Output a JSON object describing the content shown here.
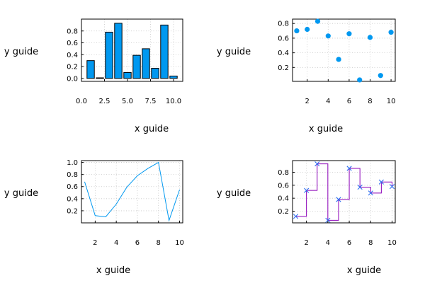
{
  "chart_data": [
    {
      "type": "bar",
      "xlabel": "x guide",
      "ylabel": "y guide",
      "x": [
        1,
        2,
        3,
        4,
        5,
        6,
        7,
        8,
        9,
        10
      ],
      "values": [
        0.3,
        0.01,
        0.78,
        0.93,
        0.1,
        0.39,
        0.5,
        0.17,
        0.9,
        0.04
      ],
      "xlim": [
        0,
        11
      ],
      "ylim": [
        -0.05,
        1.0
      ],
      "xticks": [
        0.0,
        2.5,
        5.0,
        7.5,
        10.0
      ],
      "xtick_labels": [
        "0.0",
        "2.5",
        "5.0",
        "7.5",
        "10.0"
      ],
      "yticks": [
        0.0,
        0.2,
        0.4,
        0.6,
        0.8
      ],
      "ytick_labels": [
        "0.0",
        "0.2",
        "0.4",
        "0.6",
        "0.8"
      ],
      "grid": true,
      "color": "#0098f0"
    },
    {
      "type": "scatter",
      "xlabel": "x guide",
      "ylabel": "y guide",
      "x": [
        1,
        2,
        3,
        4,
        5,
        6,
        7,
        8,
        9,
        10
      ],
      "values": [
        0.7,
        0.72,
        0.83,
        0.63,
        0.31,
        0.66,
        0.03,
        0.61,
        0.09,
        0.68
      ],
      "xlim": [
        0.6,
        10.4
      ],
      "ylim": [
        0.01,
        0.86
      ],
      "xticks": [
        2,
        4,
        6,
        8,
        10
      ],
      "xtick_labels": [
        "2",
        "4",
        "6",
        "8",
        "10"
      ],
      "yticks": [
        0.2,
        0.4,
        0.6,
        0.8
      ],
      "ytick_labels": [
        "0.2",
        "0.4",
        "0.6",
        "0.8"
      ],
      "grid": true,
      "color": "#0098f0"
    },
    {
      "type": "line",
      "xlabel": "x guide",
      "ylabel": "y guide",
      "x": [
        1,
        2,
        3,
        4,
        5,
        6,
        7,
        8,
        9,
        10
      ],
      "values": [
        0.68,
        0.12,
        0.1,
        0.31,
        0.59,
        0.78,
        0.9,
        1.0,
        0.04,
        0.55
      ],
      "xlim": [
        0.7,
        10.3
      ],
      "ylim": [
        0.0,
        1.03
      ],
      "xticks": [
        2,
        4,
        6,
        8,
        10
      ],
      "xtick_labels": [
        "2",
        "4",
        "6",
        "8",
        "10"
      ],
      "yticks": [
        0.2,
        0.4,
        0.6,
        0.8,
        1.0
      ],
      "ytick_labels": [
        "0.2",
        "0.4",
        "0.6",
        "0.8",
        "1.0"
      ],
      "grid": true,
      "color": "#0098f0"
    },
    {
      "type": "line",
      "style": "step-with-markers",
      "xlabel": "x guide",
      "ylabel": "y guide",
      "x": [
        1,
        2,
        3,
        4,
        5,
        6,
        7,
        8,
        9,
        10
      ],
      "values": [
        0.12,
        0.52,
        0.93,
        0.06,
        0.38,
        0.86,
        0.57,
        0.48,
        0.65,
        0.58
      ],
      "xlim": [
        0.7,
        10.3
      ],
      "ylim": [
        0.02,
        0.98
      ],
      "xticks": [
        2,
        4,
        6,
        8,
        10
      ],
      "xtick_labels": [
        "2",
        "4",
        "6",
        "8",
        "10"
      ],
      "yticks": [
        0.2,
        0.4,
        0.6,
        0.8
      ],
      "ytick_labels": [
        "0.2",
        "0.4",
        "0.6",
        "0.8"
      ],
      "grid": true,
      "color": "#8b00b8",
      "marker_color": "#3070f0"
    }
  ]
}
